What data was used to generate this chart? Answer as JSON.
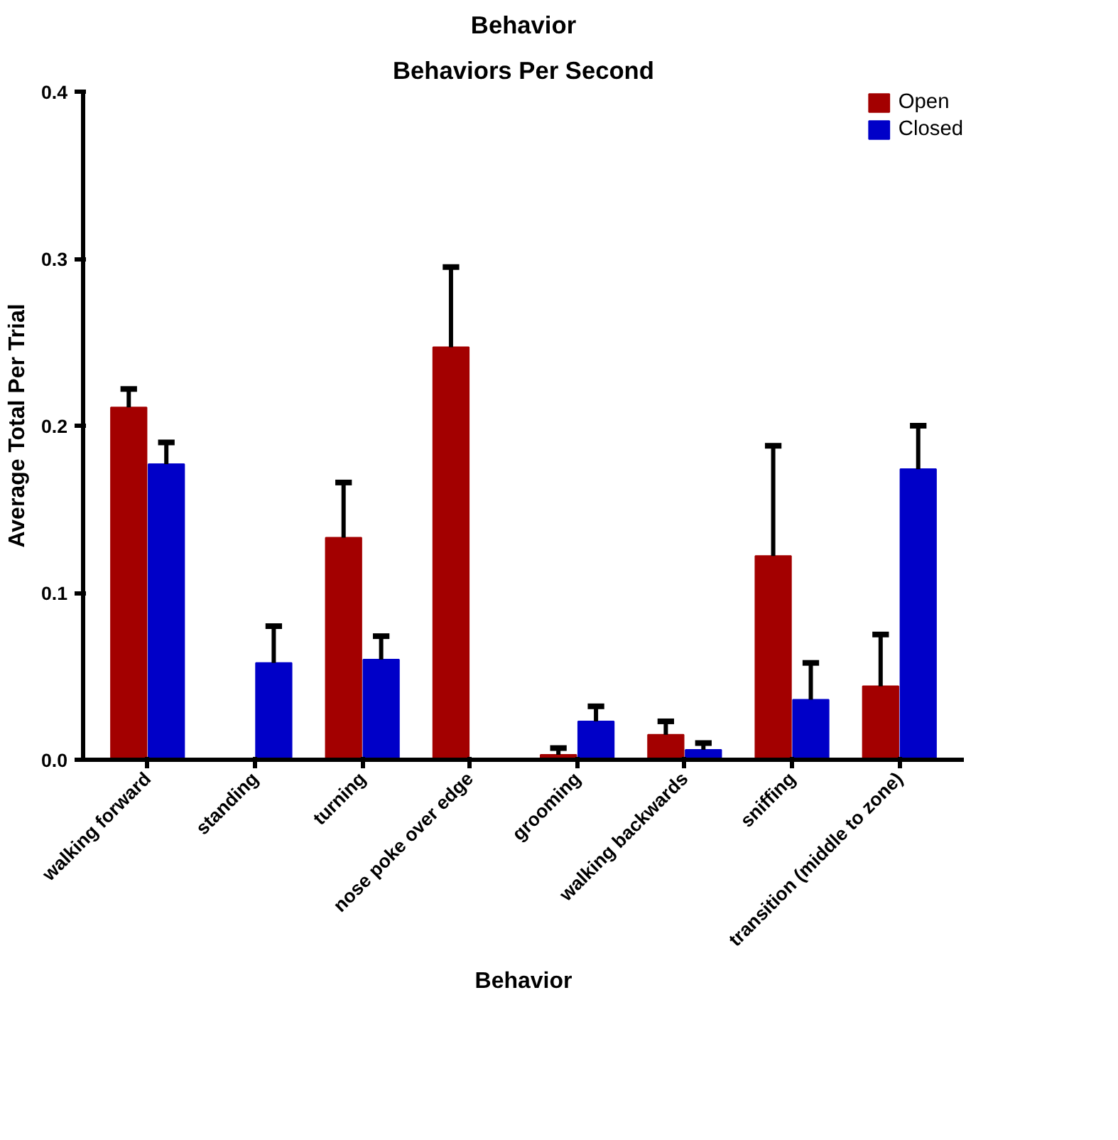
{
  "chart_data": {
    "type": "bar",
    "title": "Behavior",
    "subtitle": "Behaviors Per Second",
    "xlabel": "Behavior",
    "ylabel": "Average Total Per Trial",
    "categories": [
      "walking forward",
      "standing",
      "turning",
      "nose poke over edge",
      "grooming",
      "walking backwards",
      "sniffing",
      "transition (middle to zone)"
    ],
    "series": [
      {
        "name": "Open",
        "color": "#a30000",
        "values": [
          0.211,
          0,
          0.133,
          0.247,
          0.003,
          0.015,
          0.122,
          0.044
        ],
        "errors": [
          [
            0.211,
            0.222
          ],
          null,
          [
            0.133,
            0.166
          ],
          [
            0.247,
            0.295
          ],
          [
            0.003,
            0.007
          ],
          [
            0.015,
            0.023
          ],
          [
            0.122,
            0.188
          ],
          [
            0.044,
            0.075
          ]
        ]
      },
      {
        "name": "Closed",
        "color": "#0000c8",
        "values": [
          0.177,
          0.058,
          0.06,
          0,
          0.023,
          0.006,
          0.036,
          0.174
        ],
        "errors": [
          [
            0.177,
            0.19
          ],
          [
            0.058,
            0.08
          ],
          [
            0.06,
            0.074
          ],
          null,
          [
            0.023,
            0.032
          ],
          [
            0.006,
            0.01
          ],
          [
            0.036,
            0.058
          ],
          [
            0.174,
            0.2
          ]
        ]
      }
    ],
    "ylim": [
      0,
      0.4
    ],
    "yticks": [
      {
        "value": 0,
        "label": "0.0"
      },
      0.1,
      0.2,
      0.3,
      0.4
    ],
    "grid": false,
    "legend": "top right"
  }
}
